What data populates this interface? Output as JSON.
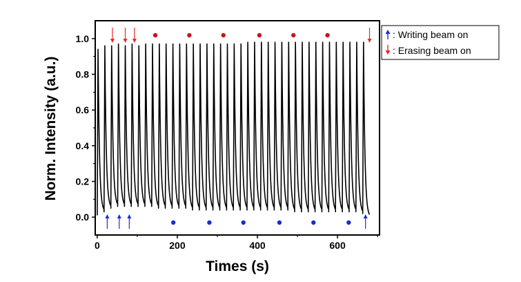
{
  "chart_data": {
    "type": "line",
    "title": "",
    "xlabel": "Times (s)",
    "ylabel": "Norm. Intensity (a.u.)",
    "xlim": [
      -5,
      705
    ],
    "ylim": [
      -0.1,
      1.1
    ],
    "xticks": [
      0,
      200,
      400,
      600
    ],
    "yticks": [
      0.0,
      0.2,
      0.4,
      0.6,
      0.8,
      1.0
    ],
    "ytick_labels": [
      "0.0",
      "0.2",
      "0.4",
      "0.6",
      "0.8",
      "1.0"
    ],
    "grid": false,
    "series": [
      {
        "name": "Norm. Intensity",
        "color": "#000000",
        "cycle_period_s": 17,
        "cycles": 40,
        "t_start": 0,
        "rise_time_s": 2,
        "decay_rate": 0.16,
        "peaks": [
          0.0,
          0.94,
          0.96,
          0.96,
          0.97,
          0.96,
          0.97,
          0.96,
          0.97,
          0.97,
          0.97,
          0.97,
          0.97,
          0.97,
          0.97,
          0.97,
          0.97,
          0.97,
          0.97,
          0.97,
          0.97,
          0.97,
          0.97,
          0.98,
          0.98,
          0.98,
          0.98,
          0.98,
          0.98,
          0.98,
          0.98,
          0.98,
          0.98,
          0.98,
          0.98,
          0.98,
          0.98,
          0.98,
          0.98,
          0.98,
          0.98
        ],
        "troughs": [
          0.01,
          0.03,
          0.05,
          0.06,
          0.06,
          0.06,
          0.06,
          0.06,
          0.06,
          0.05,
          0.05,
          0.05,
          0.05,
          0.05,
          0.04,
          0.04,
          0.04,
          0.04,
          0.04,
          0.04,
          0.04,
          0.04,
          0.04,
          0.04,
          0.04,
          0.04,
          0.04,
          0.04,
          0.04,
          0.03,
          0.03,
          0.03,
          0.03,
          0.03,
          0.03,
          0.03,
          0.03,
          0.03,
          0.03,
          0.02,
          0.0
        ]
      }
    ],
    "markers": {
      "erasing_arrows_x": [
        38,
        70,
        93,
        680
      ],
      "writing_arrows_x": [
        25,
        55,
        80,
        670
      ],
      "erasing_dots_x": [
        145,
        230,
        315,
        405,
        490,
        575
      ],
      "writing_dots_x": [
        190,
        280,
        365,
        455,
        540,
        628
      ],
      "erasing_color": "#e8262a",
      "writing_color": "#1f2bd6",
      "dot_color_red": "#c8151b",
      "dot_color_blue": "#1a2fc8"
    },
    "legend": {
      "position": "top-right",
      "entries": [
        {
          "label": ": Writing beam on",
          "symbol": "up-arrow",
          "color": "#1f2bd6"
        },
        {
          "label": ": Erasing beam on",
          "symbol": "down-arrow",
          "color": "#e8262a"
        }
      ]
    }
  }
}
